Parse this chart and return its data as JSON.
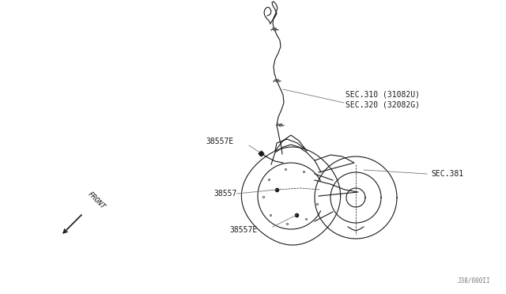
{
  "bg_color": "#ffffff",
  "line_color": "#1a1a1a",
  "gray_color": "#777777",
  "label_font_size": 7,
  "small_font_size": 5.5,
  "page_ref": "J38/000II",
  "labels": {
    "SEC310": "SEC.310 (31082U)",
    "SEC320": "SEC.320 (32082G)",
    "SEC381": "SEC.381",
    "L38557E_top": "38557E",
    "L38557": "38557",
    "L38557E_bot": "38557E"
  },
  "front_text": "FRONT"
}
